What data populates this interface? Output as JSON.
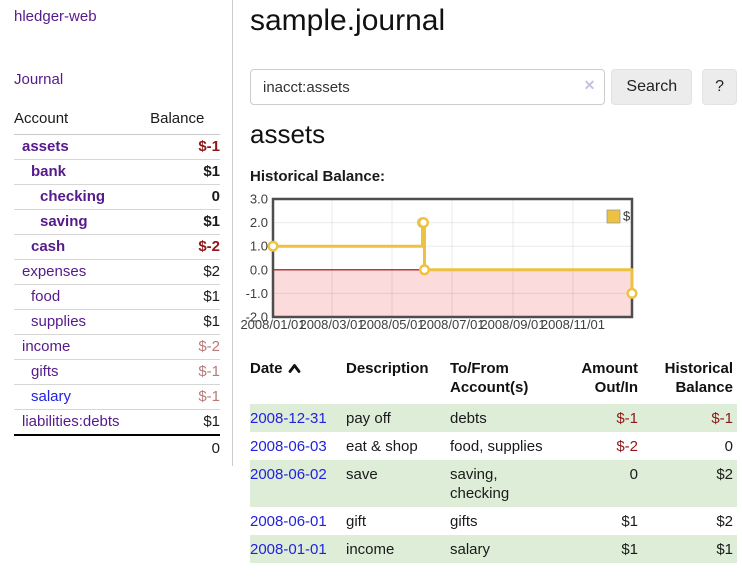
{
  "colors": {
    "link_purple": "#551a8b",
    "link_blue": "#2222dd",
    "negative": "#8f1717",
    "negative_soft": "#b87a7a",
    "row_stripe_green": "#deedd8",
    "chart_series": "#edc240",
    "chart_negative_fill": "#fbdbdb",
    "chart_zero_line": "#a00000"
  },
  "sidebar": {
    "app_title": "hledger-web",
    "nav": {
      "journal": "Journal"
    },
    "table": {
      "header": {
        "account": "Account",
        "balance": "Balance"
      },
      "rows": [
        {
          "account": "assets",
          "depth": 1,
          "balance": "$-1",
          "bold": true,
          "balance_class": "neg"
        },
        {
          "account": "bank",
          "depth": 2,
          "balance": "$1",
          "bold": true,
          "balance_class": ""
        },
        {
          "account": "checking",
          "depth": 3,
          "balance": "0",
          "bold": true,
          "balance_class": ""
        },
        {
          "account": "saving",
          "depth": 3,
          "balance": "$1",
          "bold": true,
          "balance_class": ""
        },
        {
          "account": "cash",
          "depth": 2,
          "balance": "$-2",
          "bold": true,
          "balance_class": "neg"
        },
        {
          "account": "expenses",
          "depth": 1,
          "balance": "$2",
          "bold": false,
          "balance_class": ""
        },
        {
          "account": "food",
          "depth": 2,
          "balance": "$1",
          "bold": false,
          "balance_class": ""
        },
        {
          "account": "supplies",
          "depth": 2,
          "balance": "$1",
          "bold": false,
          "balance_class": ""
        },
        {
          "account": "income",
          "depth": 1,
          "balance": "$-2",
          "bold": false,
          "balance_class": "neg-soft"
        },
        {
          "account": "gifts",
          "depth": 2,
          "balance": "$-1",
          "bold": false,
          "balance_class": "neg-soft"
        },
        {
          "account": "salary",
          "depth": 2,
          "balance": "$-1",
          "bold": false,
          "balance_class": "neg-soft",
          "link_class": "blue"
        },
        {
          "account": "liabilities:debts",
          "depth": 1,
          "balance": "$1",
          "bold": false,
          "balance_class": ""
        }
      ],
      "total": "0"
    }
  },
  "main": {
    "page_title": "sample.journal",
    "search": {
      "value": "inacct:assets",
      "clear_label": "✕",
      "search_button": "Search",
      "help_button": "?"
    },
    "account_heading": "assets",
    "chart_title": "Historical Balance:"
  },
  "chart_data": {
    "type": "line",
    "step": true,
    "title": "Historical Balance",
    "series": [
      {
        "name": "$",
        "color": "#edc240",
        "points": [
          {
            "x": "2008-01-01",
            "y": 1
          },
          {
            "x": "2008-06-01",
            "y": 2
          },
          {
            "x": "2008-06-02",
            "y": 2
          },
          {
            "x": "2008-06-03",
            "y": 0
          },
          {
            "x": "2008-12-31",
            "y": -1
          }
        ]
      }
    ],
    "x_range": [
      "2008-01-01",
      "2008-12-31"
    ],
    "y_range": [
      -2,
      3
    ],
    "x_ticks": [
      "2008/01/01",
      "2008/03/01",
      "2008/05/01",
      "2008/07/01",
      "2008/09/01",
      "2008/11/01"
    ],
    "y_ticks": [
      3,
      2,
      1,
      0,
      -1,
      -2
    ],
    "y_tick_labels": [
      "3.0",
      "2.0",
      "1.0",
      "0.0",
      "-1.0",
      "-2.0"
    ],
    "legend": {
      "label": "$",
      "position": "top-right"
    },
    "negative_region_fill": "#fbdbdb",
    "zero_line_color": "#a00000",
    "border_color": "#4d4d4d",
    "grid": true
  },
  "register": {
    "headers": {
      "date": "Date",
      "description": "Description",
      "accounts": "To/From Account(s)",
      "amount": "Amount Out/In",
      "balance": "Historical Balance"
    },
    "sort": {
      "column": "date",
      "direction": "ascending"
    },
    "rows": [
      {
        "date": "2008-12-31",
        "description": "pay off",
        "accounts": "debts",
        "amount": "$-1",
        "balance": "$-1",
        "amount_class": "neg",
        "balance_class": "neg"
      },
      {
        "date": "2008-06-03",
        "description": "eat & shop",
        "accounts": "food, supplies",
        "amount": "$-2",
        "balance": "0",
        "amount_class": "neg",
        "balance_class": ""
      },
      {
        "date": "2008-06-02",
        "description": "save",
        "accounts": "saving, checking",
        "amount": "0",
        "balance": "$2",
        "amount_class": "",
        "balance_class": ""
      },
      {
        "date": "2008-06-01",
        "description": "gift",
        "accounts": "gifts",
        "amount": "$1",
        "balance": "$2",
        "amount_class": "",
        "balance_class": ""
      },
      {
        "date": "2008-01-01",
        "description": "income",
        "accounts": "salary",
        "amount": "$1",
        "balance": "$1",
        "amount_class": "",
        "balance_class": ""
      }
    ]
  }
}
